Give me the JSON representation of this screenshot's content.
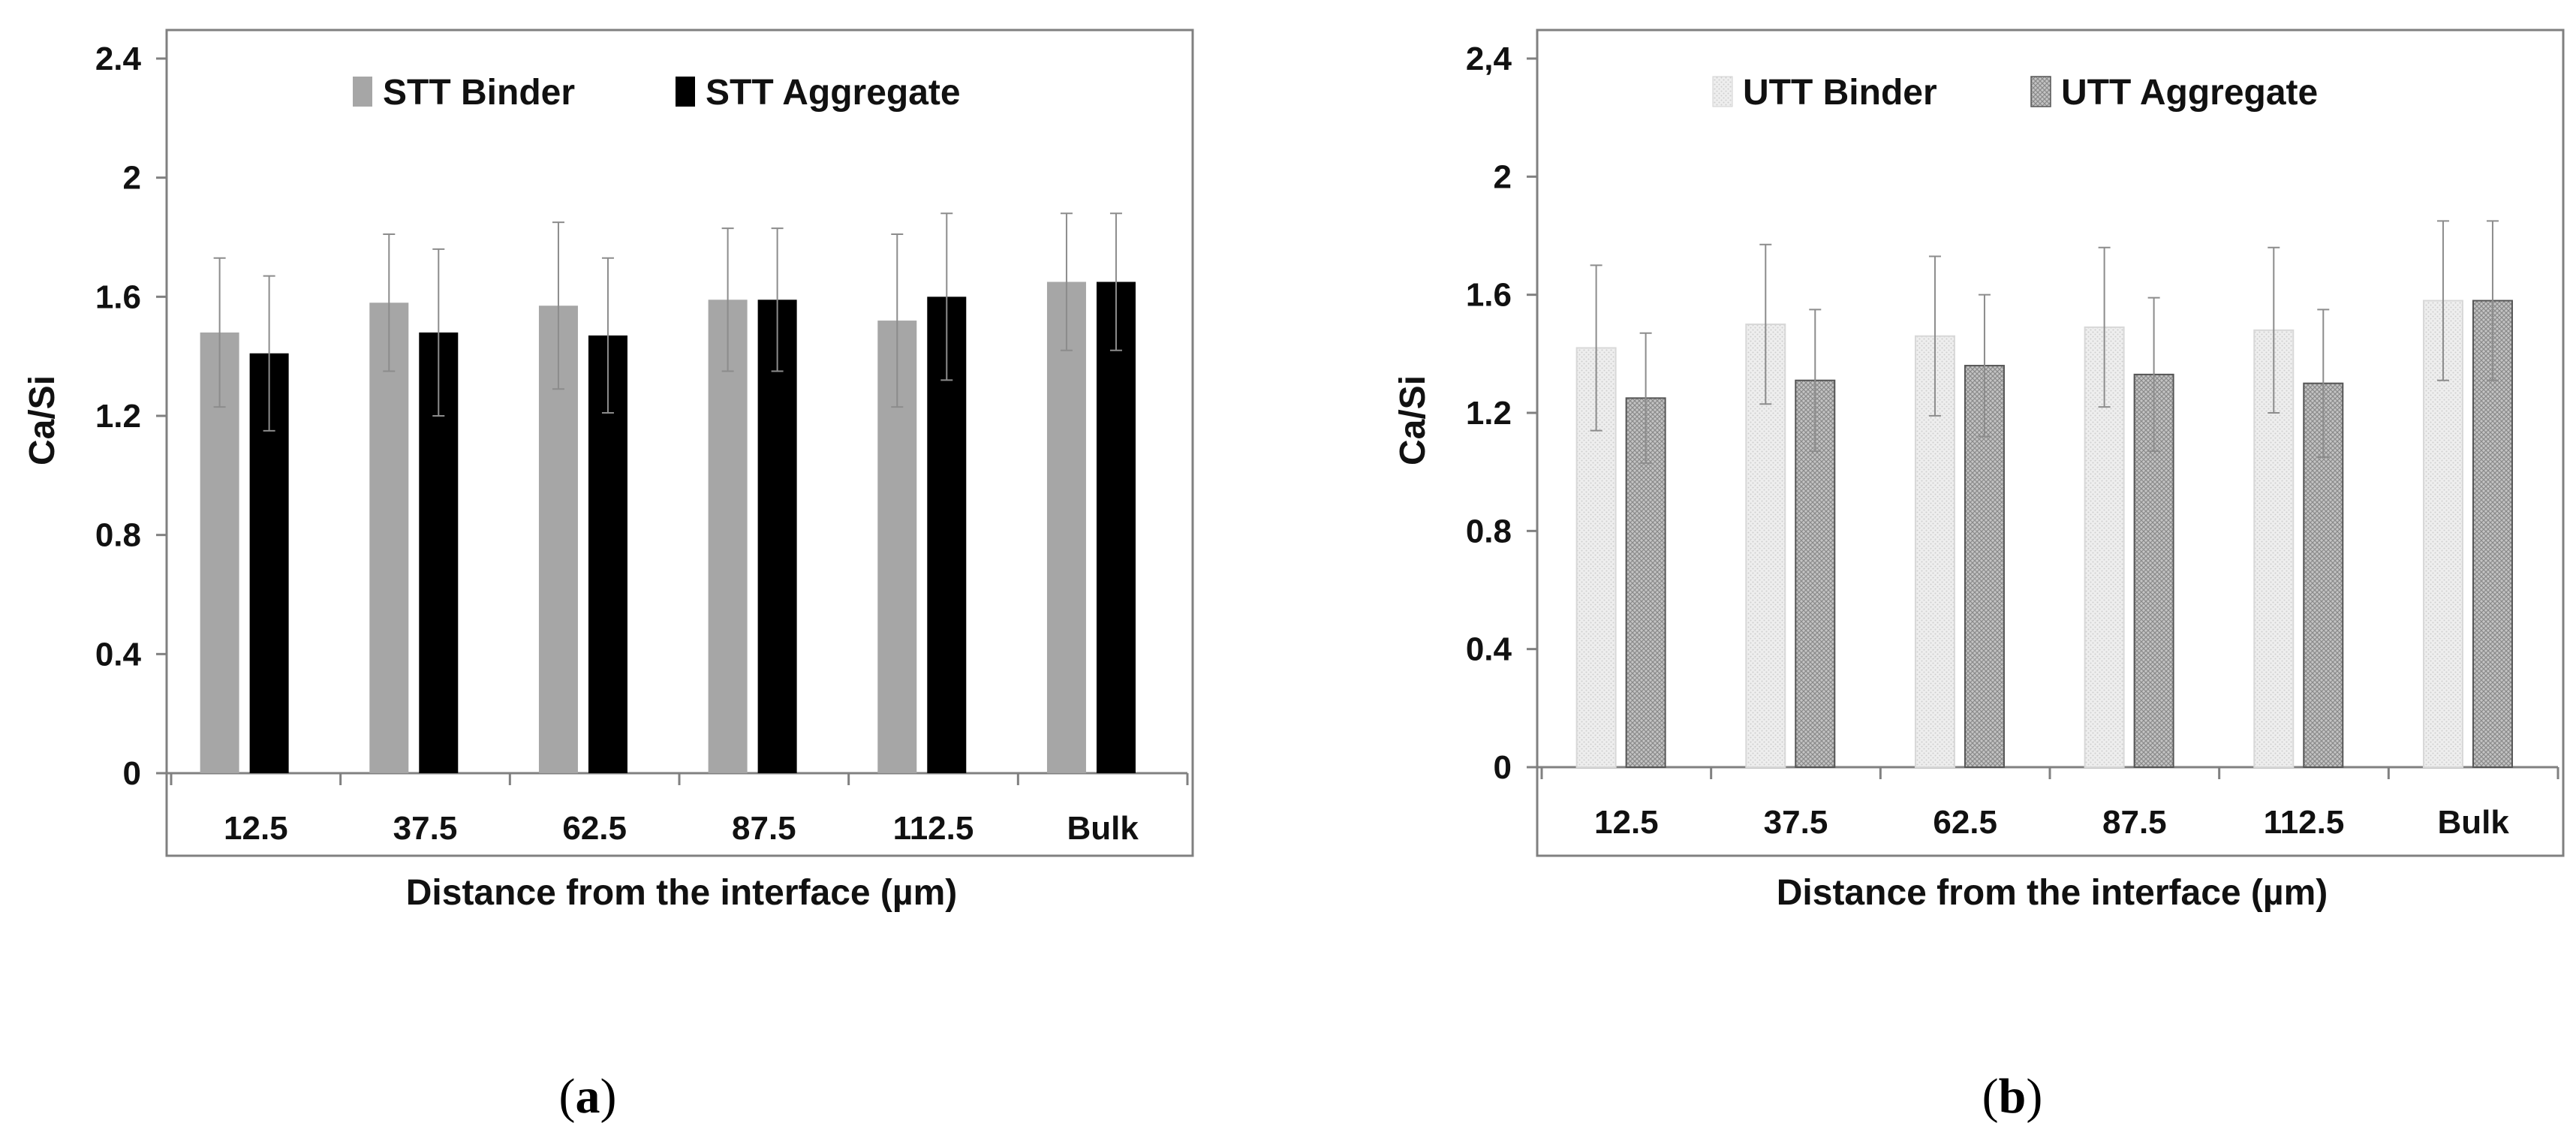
{
  "chart_data": [
    {
      "type": "bar",
      "panel_label": "a",
      "categories": [
        "12.5",
        "37.5",
        "62.5",
        "87.5",
        "112.5",
        "Bulk"
      ],
      "xlabel": "Distance from the interface (µm)",
      "ylabel": "Ca/Si",
      "ylim": [
        0,
        2.4
      ],
      "yticks": [
        "0",
        "0.4",
        "0.8",
        "1.2",
        "1.6",
        "2",
        "2.4"
      ],
      "grid": false,
      "legend_position": "top",
      "series": [
        {
          "name": "STT Binder",
          "color": "#a6a6a6",
          "pattern": "solid",
          "values": [
            1.48,
            1.58,
            1.57,
            1.59,
            1.52,
            1.65
          ],
          "errors": [
            0.25,
            0.23,
            0.28,
            0.24,
            0.29,
            0.23
          ]
        },
        {
          "name": "STT Aggregate",
          "color": "#000000",
          "pattern": "solid",
          "values": [
            1.41,
            1.48,
            1.47,
            1.59,
            1.6,
            1.65
          ],
          "errors": [
            0.26,
            0.28,
            0.26,
            0.24,
            0.28,
            0.23
          ]
        }
      ]
    },
    {
      "type": "bar",
      "panel_label": "b",
      "categories": [
        "12.5",
        "37.5",
        "62.5",
        "87.5",
        "112.5",
        "Bulk"
      ],
      "xlabel": "Distance from the interface (µm)",
      "ylabel": "Ca/Si",
      "ylim": [
        0,
        2.4
      ],
      "yticks": [
        "0",
        "0.4",
        "0.8",
        "1.2",
        "1.6",
        "2",
        "2,4"
      ],
      "grid": false,
      "legend_position": "top",
      "series": [
        {
          "name": "UTT Binder",
          "color": "#e8e8e8",
          "pattern": "dots",
          "values": [
            1.42,
            1.5,
            1.46,
            1.49,
            1.48,
            1.58
          ],
          "errors": [
            0.28,
            0.27,
            0.27,
            0.27,
            0.28,
            0.27
          ]
        },
        {
          "name": "UTT Aggregate",
          "color": "#b8b8b8",
          "pattern": "crosshatch",
          "values": [
            1.25,
            1.31,
            1.36,
            1.33,
            1.3,
            1.58
          ],
          "errors": [
            0.22,
            0.24,
            0.24,
            0.26,
            0.25,
            0.27
          ]
        }
      ]
    }
  ]
}
